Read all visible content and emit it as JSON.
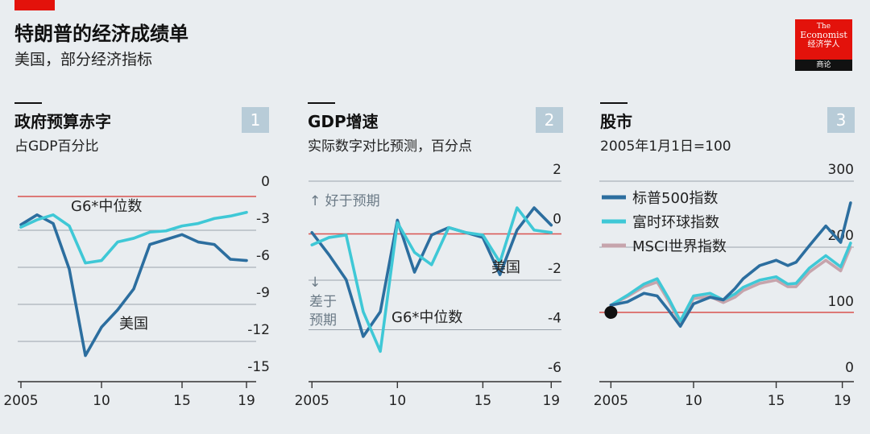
{
  "header": {
    "title": "特朗普的经济成绩单",
    "subtitle": "美国，部分经济指标"
  },
  "logo": {
    "line1": "The",
    "line2": "Economist",
    "line3": "经济学人",
    "line4": "商论"
  },
  "colors": {
    "background": "#e9edf0",
    "us": "#2c6e9f",
    "g6": "#3fc8d6",
    "msci": "#c6a4ac",
    "redline": "#d9534f",
    "brand": "#e3120b"
  },
  "chart_data": [
    {
      "type": "line",
      "number": "1",
      "title": "政府预算赤字",
      "subtitle": "占GDP百分比",
      "ylim": [
        -15,
        0
      ],
      "yticks": [
        0,
        -3,
        -6,
        -9,
        -12,
        -15
      ],
      "ytick_labels": [
        "0",
        "-3",
        "-6",
        "-9",
        "-12",
        "-15"
      ],
      "xlim": [
        2004.8,
        2019.6
      ],
      "xticks": [
        2005,
        2010,
        2015,
        2019
      ],
      "xtick_labels": [
        "2005",
        "10",
        "15",
        "19"
      ],
      "series": [
        {
          "name": "美国",
          "x": [
            2005,
            2006,
            2007,
            2008,
            2009,
            2010,
            2011,
            2012,
            2013,
            2014,
            2015,
            2016,
            2017,
            2018,
            2019
          ],
          "values": [
            -3.2,
            -2.4,
            -3.1,
            -6.8,
            -13.8,
            -11.5,
            -10.1,
            -8.4,
            -4.8,
            -4.4,
            -4.0,
            -4.6,
            -4.8,
            -6.0,
            -6.1
          ]
        },
        {
          "name": "G6*中位数",
          "x": [
            2005,
            2006,
            2007,
            2008,
            2009,
            2010,
            2011,
            2012,
            2013,
            2014,
            2015,
            2016,
            2017,
            2018,
            2019
          ],
          "values": [
            -3.4,
            -2.8,
            -2.4,
            -3.3,
            -6.3,
            -6.1,
            -4.6,
            -4.3,
            -3.8,
            -3.7,
            -3.3,
            -3.1,
            -2.7,
            -2.5,
            -2.2
          ]
        }
      ],
      "labels": [
        "G6*中位数",
        "美国"
      ]
    },
    {
      "type": "line",
      "number": "2",
      "title": "GDP增速",
      "subtitle": "实际数字对比预测，百分点",
      "ylim": [
        -6,
        2
      ],
      "yticks": [
        2,
        0,
        -2,
        -4,
        -6
      ],
      "ytick_labels": [
        "2",
        "0",
        "-2",
        "-4",
        "-6"
      ],
      "xlim": [
        2004.8,
        2019.6
      ],
      "xticks": [
        2005,
        2010,
        2015,
        2019
      ],
      "xtick_labels": [
        "2005",
        "10",
        "15",
        "19"
      ],
      "series": [
        {
          "name": "美国",
          "x": [
            2005,
            2006,
            2007,
            2008,
            2009,
            2010,
            2011,
            2012,
            2013,
            2014,
            2015,
            2016,
            2017,
            2018,
            2019
          ],
          "values": [
            -0.4,
            -1.3,
            -2.3,
            -4.6,
            -3.6,
            0.1,
            -2.0,
            -0.5,
            -0.2,
            -0.4,
            -0.6,
            -2.1,
            -0.3,
            0.6,
            -0.1
          ]
        },
        {
          "name": "G6*中位数",
          "x": [
            2005,
            2006,
            2007,
            2008,
            2009,
            2010,
            2011,
            2012,
            2013,
            2014,
            2015,
            2016,
            2017,
            2018,
            2019
          ],
          "values": [
            -0.9,
            -0.6,
            -0.5,
            -3.6,
            -5.2,
            0.0,
            -1.2,
            -1.7,
            -0.2,
            -0.4,
            -0.5,
            -1.6,
            0.6,
            -0.3,
            -0.4
          ]
        }
      ],
      "labels": [
        "↑ 好于预期",
        "↓",
        "差于",
        "预期",
        "美国",
        "G6*中位数"
      ]
    },
    {
      "type": "line",
      "number": "3",
      "title": "股市",
      "subtitle": "2005年1月1日=100",
      "ylim": [
        0,
        300
      ],
      "yticks": [
        300,
        200,
        100,
        0
      ],
      "ytick_labels": [
        "300",
        "200",
        "100",
        "0"
      ],
      "xlim": [
        2004.3,
        2019.7
      ],
      "xticks": [
        2005,
        2010,
        2015,
        2019
      ],
      "xtick_labels": [
        "2005",
        "10",
        "15",
        "19"
      ],
      "series": [
        {
          "name": "MSCI世界指数",
          "x": [
            2005,
            2006,
            2007,
            2007.8,
            2008.5,
            2009.2,
            2010,
            2011,
            2011.8,
            2012.5,
            2013,
            2014,
            2015,
            2015.7,
            2016.2,
            2017,
            2018,
            2018.9,
            2019.5
          ],
          "values": [
            100,
            113,
            128,
            135,
            106,
            73,
            110,
            113,
            104,
            112,
            122,
            133,
            138,
            128,
            128,
            150,
            168,
            152,
            188
          ]
        },
        {
          "name": "富时环球指数",
          "x": [
            2005,
            2006,
            2007,
            2007.8,
            2008.5,
            2009.2,
            2010,
            2011,
            2011.8,
            2012.5,
            2013,
            2014,
            2015,
            2015.7,
            2016.2,
            2017,
            2018,
            2018.9,
            2019.5
          ],
          "values": [
            100,
            115,
            132,
            140,
            110,
            76,
            114,
            118,
            108,
            117,
            127,
            138,
            143,
            132,
            133,
            156,
            175,
            158,
            194
          ]
        },
        {
          "name": "标普500指数",
          "x": [
            2005,
            2006,
            2007,
            2007.8,
            2008.5,
            2009.2,
            2010,
            2011,
            2011.8,
            2012.5,
            2013,
            2014,
            2015,
            2015.7,
            2016.2,
            2017,
            2018,
            2018.9,
            2019.5
          ],
          "values": [
            100,
            105,
            118,
            114,
            92,
            68,
            102,
            112,
            108,
            125,
            140,
            160,
            168,
            160,
            165,
            190,
            220,
            195,
            255
          ]
        }
      ],
      "start_point": {
        "x": 2005,
        "y": 100
      },
      "legend": [
        "标普500指数",
        "富时环球指数",
        "MSCI世界指数"
      ]
    }
  ]
}
